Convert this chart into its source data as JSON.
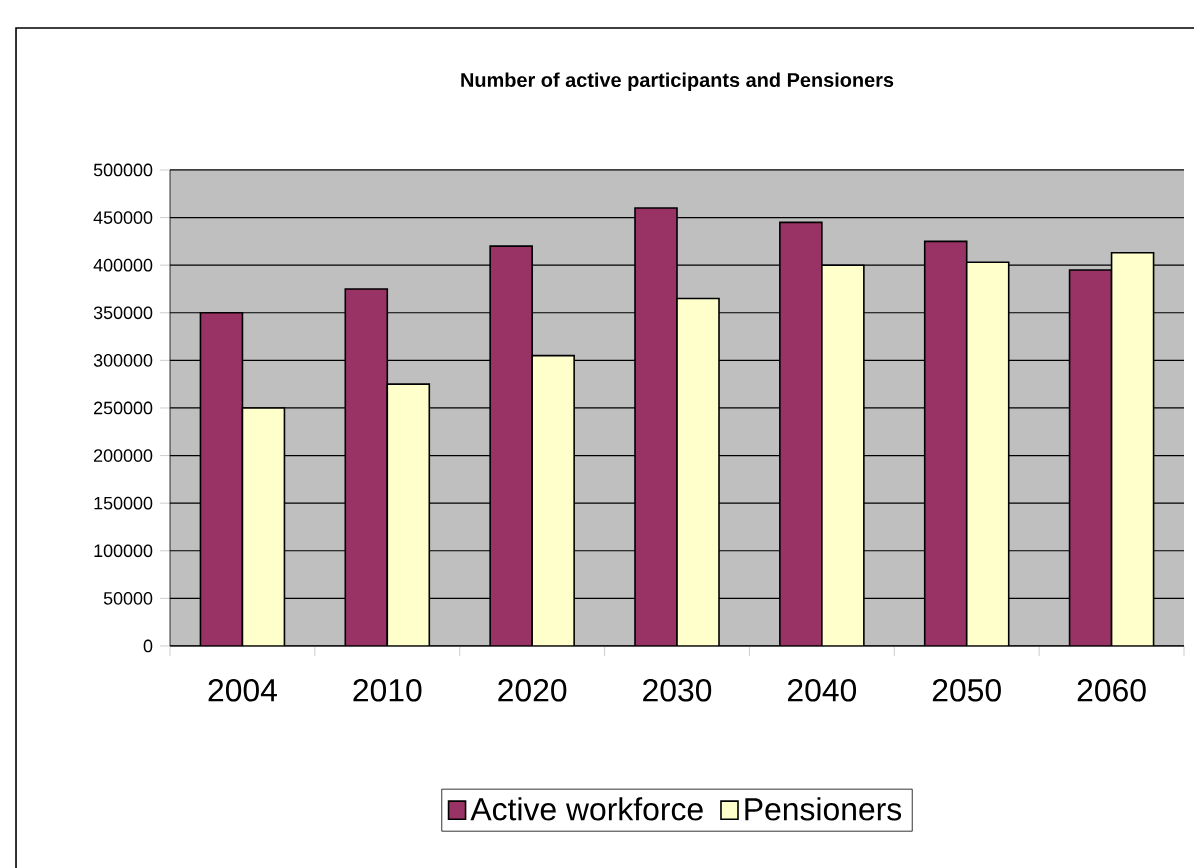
{
  "chart_data": {
    "type": "bar",
    "title": "Number of active participants and Pensioners",
    "categories": [
      "2004",
      "2010",
      "2020",
      "2030",
      "2040",
      "2050",
      "2060"
    ],
    "series": [
      {
        "name": "Active workforce",
        "color": "#993366",
        "values": [
          350000,
          375000,
          420000,
          460000,
          445000,
          425000,
          395000
        ]
      },
      {
        "name": "Pensioners",
        "color": "#ffffcc",
        "values": [
          250000,
          275000,
          305000,
          365000,
          400000,
          403000,
          413000
        ]
      }
    ],
    "ylim": [
      0,
      500000
    ],
    "yticks": [
      0,
      50000,
      100000,
      150000,
      200000,
      250000,
      300000,
      350000,
      400000,
      450000,
      500000
    ],
    "grid": "y",
    "legend": "bottom"
  }
}
